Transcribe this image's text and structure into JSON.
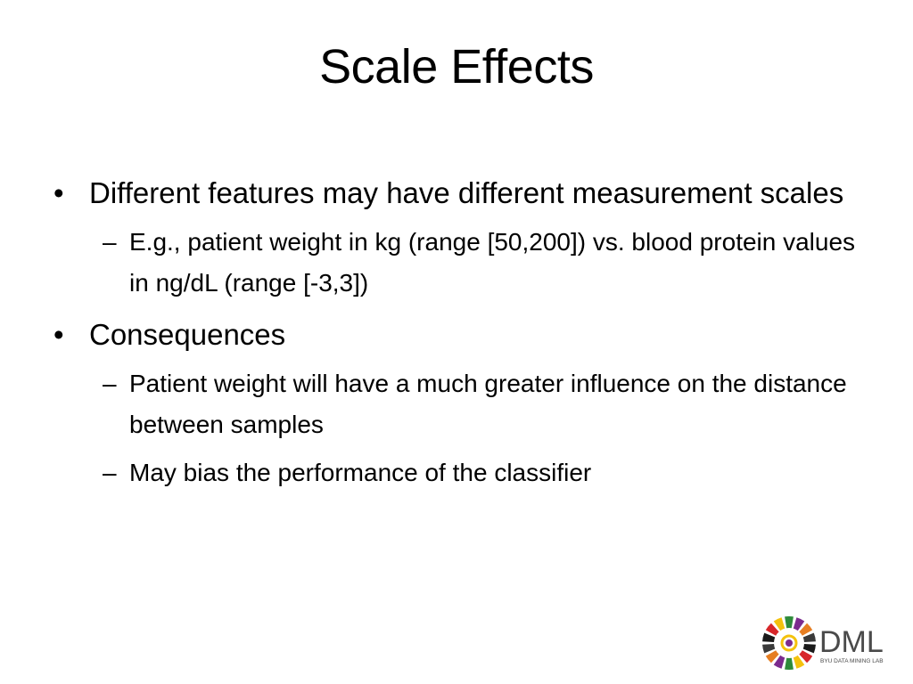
{
  "slide": {
    "title": "Scale Effects",
    "bullets": [
      {
        "text": "Different features may have different measurement scales",
        "subs": [
          "E.g., patient weight in kg (range [50,200]) vs. blood protein values in ng/dL (range [-3,3])"
        ]
      },
      {
        "text": "Consequences",
        "subs": [
          "Patient weight will have a much greater influence on the distance between samples",
          "May bias the performance of the classifier"
        ]
      }
    ],
    "bullet_glyph": "•",
    "dash_glyph": "–"
  },
  "logo": {
    "text": "DML",
    "subtext": "BYU DATA MINING LAB",
    "colors": [
      "#1a1a1a",
      "#d7262a",
      "#f4c20d",
      "#2e8b3a",
      "#7b2b8e",
      "#e67e22",
      "#3a3a3a"
    ]
  }
}
